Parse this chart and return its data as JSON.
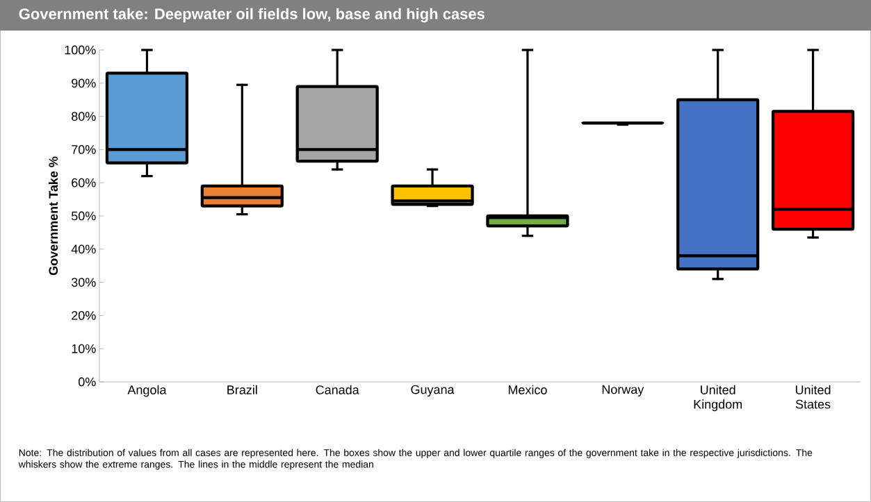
{
  "chart_data": {
    "type": "box",
    "title": "Government take: Deepwater oil fields   low, base and high cases",
    "ylabel": "Government Take %",
    "categories": [
      "Angola",
      "Brazil",
      "Canada",
      "Guyana",
      "Mexico",
      "Norway",
      "United Kingdom",
      "United States"
    ],
    "colors": [
      "#5b9bd5",
      "#ed7d31",
      "#a5a5a5",
      "#ffc000",
      "#70ad47",
      "#000000",
      "#4472c4",
      "#ff0000"
    ],
    "boxes": [
      {
        "low": 62,
        "q1": 66,
        "median": 70,
        "q3": 93,
        "high": 100
      },
      {
        "low": 50.5,
        "q1": 53,
        "median": 55.5,
        "q3": 59,
        "high": 89.5
      },
      {
        "low": 64,
        "q1": 66.5,
        "median": 70,
        "q3": 89,
        "high": 100
      },
      {
        "low": 53,
        "q1": 53.5,
        "median": 54.5,
        "q3": 59,
        "high": 64
      },
      {
        "low": 44,
        "q1": 47,
        "median": 49.5,
        "q3": 50,
        "high": 100
      },
      {
        "low": 77.5,
        "q1": 78,
        "median": 78,
        "q3": 78,
        "high": 78
      },
      {
        "low": 31,
        "q1": 34,
        "median": 38,
        "q3": 85,
        "high": 100
      },
      {
        "low": 43.5,
        "q1": 46,
        "median": 52,
        "q3": 81.5,
        "high": 100
      }
    ],
    "ylim": [
      0,
      100
    ],
    "yticks": [
      {
        "value": 0,
        "label": "0%"
      },
      {
        "value": 10,
        "label": "10%"
      },
      {
        "value": 20,
        "label": "20%"
      },
      {
        "value": 30,
        "label": "30%"
      },
      {
        "value": 40,
        "label": "40%"
      },
      {
        "value": 50,
        "label": "50%"
      },
      {
        "value": 60,
        "label": "60%"
      },
      {
        "value": 70,
        "label": "70%"
      },
      {
        "value": 80,
        "label": "80%"
      },
      {
        "value": 90,
        "label": "90%"
      },
      {
        "value": 100,
        "label": "100%"
      }
    ],
    "annotations": [
      "Note: The distribution of values from all cases are represented here. The boxes show the upper and lower quartile ranges of the government take in the respective jurisdictions. The whiskers show the extreme ranges. The lines in the middle represent the median"
    ]
  }
}
